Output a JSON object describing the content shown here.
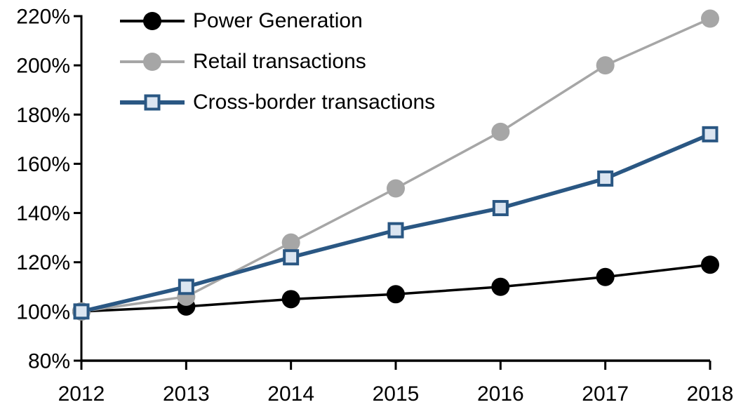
{
  "chart_data": {
    "type": "line",
    "title": "",
    "xlabel": "",
    "ylabel": "",
    "x": [
      "2012",
      "2013",
      "2014",
      "2015",
      "2016",
      "2017",
      "2018"
    ],
    "series": [
      {
        "name": "Power Generation",
        "values": [
          100,
          102,
          105,
          107,
          110,
          114,
          119
        ],
        "color": "#000000",
        "marker": "circle",
        "marker_fill": "#000000",
        "line_width": 3.5
      },
      {
        "name": "Retail transactions",
        "values": [
          100,
          106,
          128,
          150,
          173,
          200,
          219
        ],
        "color": "#a6a6a6",
        "marker": "circle",
        "marker_fill": "#a6a6a6",
        "line_width": 3.5
      },
      {
        "name": "Cross-border transactions",
        "values": [
          100,
          110,
          122,
          133,
          142,
          154,
          172
        ],
        "color": "#2a5783",
        "marker": "square",
        "marker_fill": "#dbe5f1",
        "line_width": 5.5
      }
    ],
    "y_axis": {
      "min": 80,
      "max": 220,
      "step": 20,
      "tick_labels": [
        "80%",
        "100%",
        "120%",
        "140%",
        "160%",
        "180%",
        "200%",
        "220%"
      ],
      "unit": "%"
    },
    "x_axis": {
      "tick_labels": [
        "2012",
        "2013",
        "2014",
        "2015",
        "2016",
        "2017",
        "2018"
      ]
    },
    "legend_position": "top-left",
    "grid": false,
    "axis_color": "#000000",
    "background": "#ffffff"
  }
}
